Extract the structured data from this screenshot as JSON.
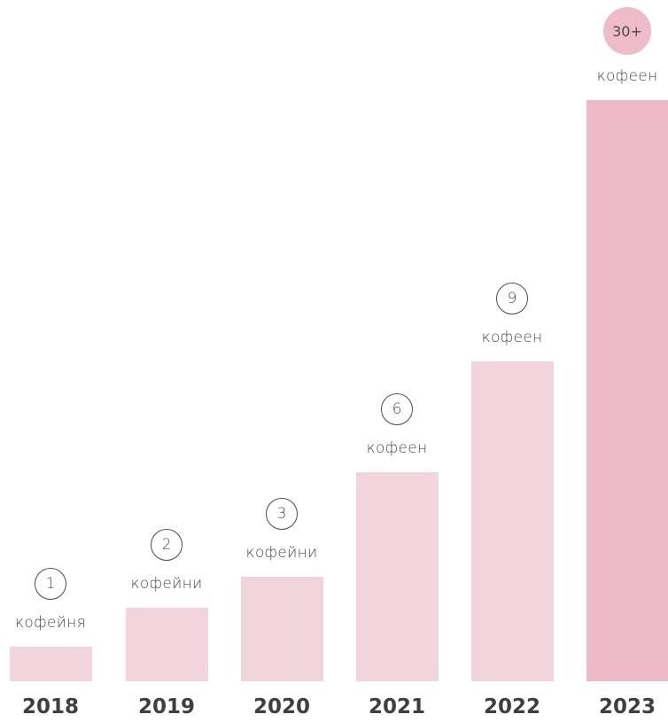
{
  "chart_data": {
    "type": "bar",
    "categories": [
      "2018",
      "2019",
      "2020",
      "2021",
      "2022",
      "2023"
    ],
    "values": [
      1,
      2,
      3,
      6,
      9,
      30
    ],
    "value_labels": [
      "1",
      "2",
      "3",
      "6",
      "9",
      "30+"
    ],
    "unit_labels": [
      "кофейня",
      "кофейни",
      "кофейни",
      "кофеен",
      "кофеен",
      "кофеен"
    ],
    "title": "",
    "xlabel": "",
    "ylabel": "",
    "grid": false,
    "legend": "none",
    "colors": {
      "bar": "#f2d4dc",
      "highlight_bar": "#efbac8",
      "badge_fill": "#eebcc9",
      "text": "#4a4a4a"
    }
  }
}
